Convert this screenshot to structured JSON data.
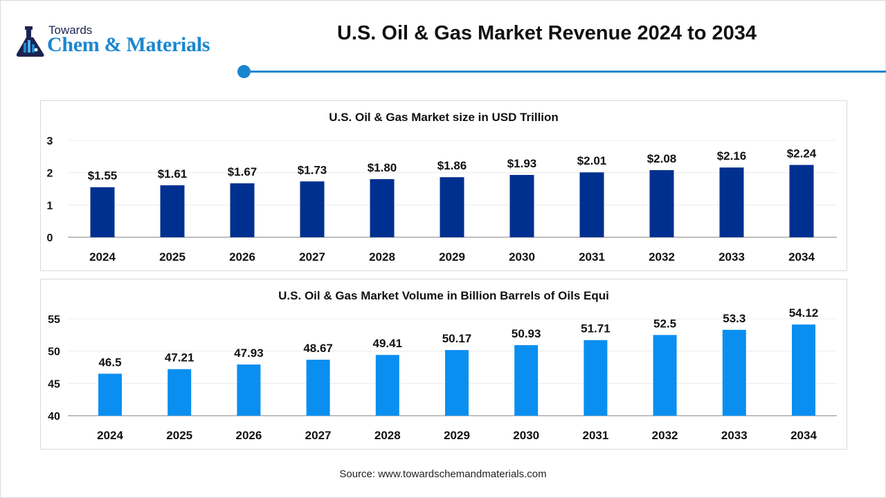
{
  "logo": {
    "line1": "Towards",
    "line2": "Chem & Materials"
  },
  "header": {
    "title": "U.S. Oil & Gas Market Revenue 2024 to 2034",
    "accent_color": "#1a86d0"
  },
  "chart_data": [
    {
      "type": "bar",
      "title": "U.S. Oil & Gas Market size in USD Trillion",
      "categories": [
        "2024",
        "2025",
        "2026",
        "2027",
        "2028",
        "2029",
        "2030",
        "2031",
        "2032",
        "2033",
        "2034"
      ],
      "values": [
        1.55,
        1.61,
        1.67,
        1.73,
        1.8,
        1.86,
        1.93,
        2.01,
        2.08,
        2.16,
        2.24
      ],
      "data_labels": [
        "$1.55",
        "$1.61",
        "$1.67",
        "$1.73",
        "$1.80",
        "$1.86",
        "$1.93",
        "$2.01",
        "$2.08",
        "$2.16",
        "$2.24"
      ],
      "yticks": [
        "0",
        "1",
        "2",
        "3"
      ],
      "ylim": [
        0,
        3
      ],
      "xlabel": "",
      "ylabel": "",
      "grid": true,
      "color": "#00308f"
    },
    {
      "type": "bar",
      "title": "U.S. Oil & Gas Market Volume in Billion Barrels of Oils Equi",
      "categories": [
        "2024",
        "2025",
        "2026",
        "2027",
        "2028",
        "2029",
        "2030",
        "2031",
        "2032",
        "2033",
        "2034"
      ],
      "values": [
        46.5,
        47.21,
        47.93,
        48.67,
        49.41,
        50.17,
        50.93,
        51.71,
        52.5,
        53.3,
        54.12
      ],
      "data_labels": [
        "46.5",
        "47.21",
        "47.93",
        "48.67",
        "49.41",
        "50.17",
        "50.93",
        "51.71",
        "52.5",
        "53.3",
        "54.12"
      ],
      "yticks": [
        "40",
        "45",
        "50",
        "55"
      ],
      "ylim": [
        40,
        55
      ],
      "xlabel": "",
      "ylabel": "",
      "grid": true,
      "color": "#0a8ff0"
    }
  ],
  "footer": {
    "source": "Source: www.towardschemandmaterials.com"
  }
}
